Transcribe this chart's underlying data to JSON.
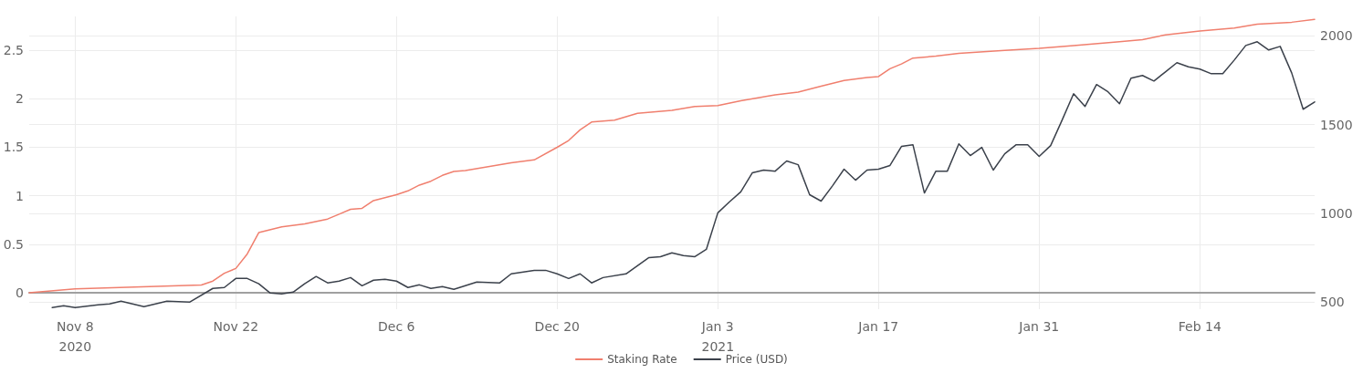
{
  "chart_data": {
    "type": "line",
    "legend": "bottom",
    "grid": true,
    "marker": "none",
    "line_style": "solid",
    "xlim": [
      "2020-11-04",
      "2021-02-24"
    ],
    "xticks": [
      {
        "value": "2020-11-08",
        "label": "Nov 8\n2020"
      },
      {
        "value": "2020-11-22",
        "label": "Nov 22"
      },
      {
        "value": "2020-12-06",
        "label": "Dec 6"
      },
      {
        "value": "2020-12-20",
        "label": "Dec 20"
      },
      {
        "value": "2021-01-03",
        "label": "Jan 3\n2021"
      },
      {
        "value": "2021-01-17",
        "label": "Jan 17"
      },
      {
        "value": "2021-01-31",
        "label": "Jan 31"
      },
      {
        "value": "2021-02-14",
        "label": "Feb 14"
      }
    ],
    "ylim": [
      -0.17,
      2.85
    ],
    "yticks": [
      0,
      0.5,
      1,
      1.5,
      2,
      2.5
    ],
    "y2lim": [
      460,
      2110
    ],
    "y2ticks": [
      500,
      1000,
      1500,
      2000
    ],
    "series": [
      {
        "name": "Staking Rate",
        "color": "#f07f6e",
        "x": [
          "2020-11-04",
          "2020-11-08",
          "2020-11-19",
          "2020-11-20",
          "2020-11-21",
          "2020-11-22",
          "2020-11-23",
          "2020-11-24",
          "2020-11-26",
          "2020-11-28",
          "2020-11-30",
          "2020-12-01",
          "2020-12-02",
          "2020-12-03",
          "2020-12-04",
          "2020-12-06",
          "2020-12-07",
          "2020-12-08",
          "2020-12-09",
          "2020-12-10",
          "2020-12-11",
          "2020-12-12",
          "2020-12-14",
          "2020-12-16",
          "2020-12-18",
          "2020-12-20",
          "2020-12-21",
          "2020-12-22",
          "2020-12-23",
          "2020-12-25",
          "2020-12-27",
          "2020-12-30",
          "2021-01-01",
          "2021-01-03",
          "2021-01-05",
          "2021-01-08",
          "2021-01-10",
          "2021-01-12",
          "2021-01-14",
          "2021-01-16",
          "2021-01-17",
          "2021-01-18",
          "2021-01-19",
          "2021-01-20",
          "2021-01-22",
          "2021-01-24",
          "2021-01-28",
          "2021-01-31",
          "2021-02-03",
          "2021-02-07",
          "2021-02-09",
          "2021-02-11",
          "2021-02-14",
          "2021-02-17",
          "2021-02-19",
          "2021-02-22",
          "2021-02-24"
        ],
        "values": [
          0,
          0.04,
          0.08,
          0.12,
          0.2,
          0.25,
          0.4,
          0.62,
          0.68,
          0.71,
          0.76,
          0.81,
          0.86,
          0.87,
          0.95,
          1.01,
          1.05,
          1.11,
          1.15,
          1.21,
          1.25,
          1.26,
          1.3,
          1.34,
          1.37,
          1.5,
          1.57,
          1.68,
          1.76,
          1.78,
          1.85,
          1.88,
          1.92,
          1.93,
          1.98,
          2.04,
          2.07,
          2.13,
          2.19,
          2.22,
          2.23,
          2.31,
          2.36,
          2.42,
          2.44,
          2.47,
          2.5,
          2.52,
          2.55,
          2.59,
          2.61,
          2.66,
          2.7,
          2.73,
          2.77,
          2.79,
          2.82
        ]
      },
      {
        "name": "Price (USD)",
        "color": "#3b414b",
        "axis": "y2",
        "x": [
          "2020-11-06",
          "2020-11-07",
          "2020-11-08",
          "2020-11-10",
          "2020-11-11",
          "2020-11-12",
          "2020-11-14",
          "2020-11-16",
          "2020-11-18",
          "2020-11-20",
          "2020-11-21",
          "2020-11-22",
          "2020-11-23",
          "2020-11-24",
          "2020-11-25",
          "2020-11-26",
          "2020-11-27",
          "2020-11-28",
          "2020-11-29",
          "2020-11-30",
          "2020-12-01",
          "2020-12-02",
          "2020-12-03",
          "2020-12-04",
          "2020-12-05",
          "2020-12-06",
          "2020-12-07",
          "2020-12-08",
          "2020-12-09",
          "2020-12-10",
          "2020-12-11",
          "2020-12-12",
          "2020-12-13",
          "2020-12-15",
          "2020-12-16",
          "2020-12-18",
          "2020-12-19",
          "2020-12-20",
          "2020-12-21",
          "2020-12-22",
          "2020-12-23",
          "2020-12-24",
          "2020-12-26",
          "2020-12-28",
          "2020-12-29",
          "2020-12-30",
          "2020-12-31",
          "2021-01-01",
          "2021-01-02",
          "2021-01-03",
          "2021-01-04",
          "2021-01-05",
          "2021-01-06",
          "2021-01-07",
          "2021-01-08",
          "2021-01-09",
          "2021-01-10",
          "2021-01-11",
          "2021-01-12",
          "2021-01-13",
          "2021-01-14",
          "2021-01-15",
          "2021-01-16",
          "2021-01-17",
          "2021-01-18",
          "2021-01-19",
          "2021-01-20",
          "2021-01-21",
          "2021-01-22",
          "2021-01-23",
          "2021-01-24",
          "2021-01-25",
          "2021-01-26",
          "2021-01-27",
          "2021-01-28",
          "2021-01-29",
          "2021-01-30",
          "2021-01-31",
          "2021-02-01",
          "2021-02-02",
          "2021-02-03",
          "2021-02-04",
          "2021-02-05",
          "2021-02-06",
          "2021-02-07",
          "2021-02-08",
          "2021-02-09",
          "2021-02-10",
          "2021-02-11",
          "2021-02-12",
          "2021-02-13",
          "2021-02-14",
          "2021-02-15",
          "2021-02-16",
          "2021-02-17",
          "2021-02-18",
          "2021-02-19",
          "2021-02-20",
          "2021-02-21",
          "2021-02-22",
          "2021-02-23",
          "2021-02-24"
        ],
        "values": [
          469,
          479,
          469,
          485,
          490,
          505,
          474,
          505,
          500,
          577,
          582,
          633,
          633,
          603,
          551,
          546,
          556,
          603,
          644,
          608,
          618,
          638,
          592,
          623,
          628,
          618,
          582,
          597,
          577,
          587,
          572,
          592,
          613,
          608,
          659,
          679,
          679,
          659,
          633,
          659,
          608,
          638,
          659,
          751,
          756,
          777,
          762,
          756,
          797,
          1003,
          1064,
          1121,
          1228,
          1244,
          1238,
          1295,
          1274,
          1105,
          1069,
          1156,
          1249,
          1187,
          1244,
          1249,
          1270,
          1377,
          1387,
          1115,
          1238,
          1238,
          1392,
          1326,
          1372,
          1244,
          1336,
          1387,
          1387,
          1321,
          1382,
          1526,
          1674,
          1603,
          1726,
          1685,
          1618,
          1762,
          1777,
          1746,
          1797,
          1849,
          1826,
          1813,
          1787,
          1787,
          1864,
          1946,
          1967,
          1921,
          1941,
          1792,
          1587,
          1628
        ]
      }
    ]
  }
}
